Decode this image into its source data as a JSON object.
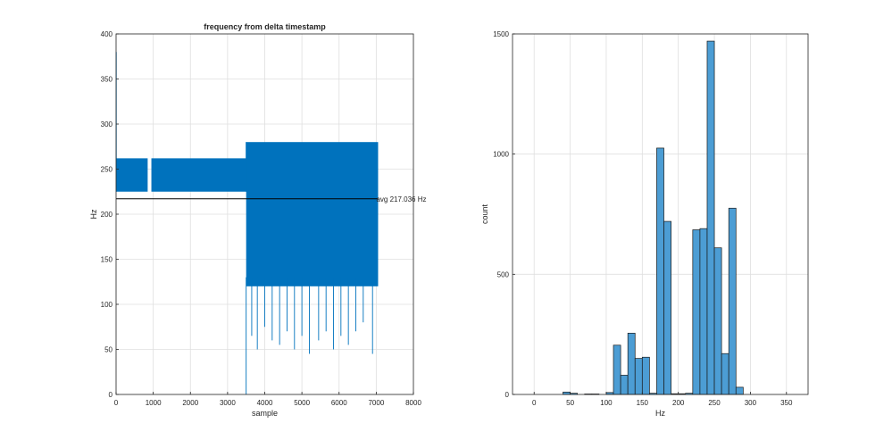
{
  "chart_data": [
    {
      "type": "line",
      "title": "frequency from delta timestamp",
      "xlabel": "sample",
      "ylabel": "Hz",
      "xlim": [
        0,
        8000
      ],
      "ylim": [
        0,
        400
      ],
      "xticks": [
        0,
        1000,
        2000,
        3000,
        4000,
        5000,
        6000,
        7000,
        8000
      ],
      "yticks": [
        0,
        50,
        100,
        150,
        200,
        250,
        300,
        350,
        400
      ],
      "grid": true,
      "series_color": "#0072BD",
      "series": [
        {
          "segments": [
            {
              "x_range": [
                0,
                850
              ],
              "low": 225,
              "high": 262
            },
            {
              "x_range": [
                950,
                3500
              ],
              "low": 225,
              "high": 262
            },
            {
              "x_range": [
                3500,
                7050
              ],
              "low": 120,
              "high": 280
            }
          ],
          "spikes_down": [
            {
              "x": 3500,
              "y": 0
            },
            {
              "x": 3650,
              "y": 65
            },
            {
              "x": 3800,
              "y": 50
            },
            {
              "x": 4000,
              "y": 75
            },
            {
              "x": 4200,
              "y": 60
            },
            {
              "x": 4400,
              "y": 55
            },
            {
              "x": 4600,
              "y": 70
            },
            {
              "x": 4800,
              "y": 50
            },
            {
              "x": 5000,
              "y": 65
            },
            {
              "x": 5200,
              "y": 45
            },
            {
              "x": 5450,
              "y": 60
            },
            {
              "x": 5650,
              "y": 70
            },
            {
              "x": 5850,
              "y": 50
            },
            {
              "x": 6050,
              "y": 65
            },
            {
              "x": 6250,
              "y": 55
            },
            {
              "x": 6450,
              "y": 70
            },
            {
              "x": 6650,
              "y": 80
            },
            {
              "x": 6900,
              "y": 45
            }
          ],
          "spikes_up": [
            {
              "x": 5,
              "y": 380
            }
          ]
        }
      ],
      "reference_line": {
        "y": 217.036,
        "x_end": 7050,
        "label": "avg 217.036 Hz"
      }
    },
    {
      "type": "bar",
      "title": "",
      "xlabel": "Hz",
      "ylabel": "count",
      "xlim": [
        -30,
        380
      ],
      "ylim": [
        0,
        1500
      ],
      "xticks": [
        0,
        50,
        100,
        150,
        200,
        250,
        300,
        350
      ],
      "yticks": [
        0,
        500,
        1000,
        1500
      ],
      "grid": true,
      "bar_color": "#4C9DD4",
      "bin_width": 10,
      "bin_starts": [
        40,
        50,
        60,
        70,
        80,
        90,
        100,
        110,
        120,
        130,
        140,
        150,
        160,
        170,
        180,
        190,
        200,
        210,
        220,
        230,
        240,
        250,
        260,
        270,
        280
      ],
      "values": [
        10,
        5,
        0,
        2,
        2,
        0,
        8,
        205,
        80,
        255,
        150,
        155,
        5,
        1025,
        720,
        3,
        3,
        5,
        685,
        690,
        1470,
        610,
        170,
        775,
        30
      ]
    }
  ]
}
